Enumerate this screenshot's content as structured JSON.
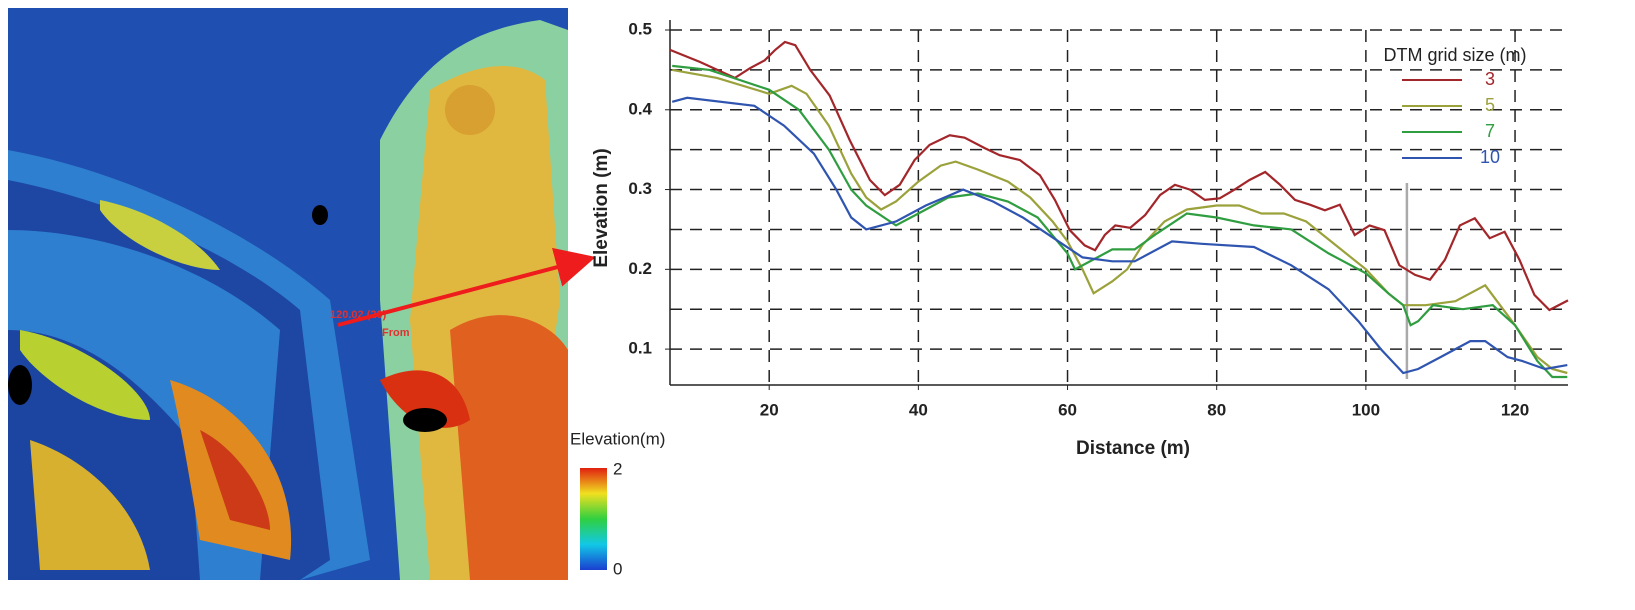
{
  "map": {
    "annotation_value": "120.02 (20)",
    "annotation_from": "From",
    "legend_title": "Elevation(m)",
    "legend_max": "2",
    "legend_min": "0"
  },
  "chart_data": {
    "type": "line",
    "xlabel": "Distance (m)",
    "ylabel": "Elevation (m)",
    "xlim": [
      6.7,
      127.1
    ],
    "ylim": [
      0.055,
      0.5
    ],
    "xticks": [
      20,
      40,
      60,
      80,
      100,
      120
    ],
    "yticks": [
      0.1,
      0.2,
      0.3,
      0.4,
      0.5
    ],
    "ygrid": [
      0.1,
      0.15,
      0.2,
      0.25,
      0.3,
      0.35,
      0.4,
      0.45,
      0.5
    ],
    "grid": true,
    "marker_x": 105.5,
    "legend_title": "DTM grid size (m)",
    "legend": "upper right",
    "series": [
      {
        "name": "3",
        "color": "#a3262a",
        "x": [
          6.7,
          10.7,
          15.4,
          17.4,
          19.4,
          20.8,
          22.1,
          23.5,
          25.5,
          28.1,
          30.8,
          33.5,
          35.5,
          37.5,
          39.5,
          41.5,
          44.2,
          46.2,
          48.9,
          50.9,
          53.6,
          56.3,
          58.3,
          60.3,
          62.3,
          63.7,
          65,
          66.4,
          68.4,
          70.4,
          72.4,
          74.4,
          76.4,
          78.4,
          80.4,
          82.4,
          84.4,
          86.5,
          88.5,
          90.5,
          92.5,
          94.5,
          96.5,
          98.5,
          100.5,
          102.5,
          104.5,
          106.6,
          108.6,
          110.6,
          112.6,
          114.6,
          116.6,
          118.6,
          120.6,
          122.6,
          124.6,
          127.1
        ],
        "values": [
          0.475,
          0.46,
          0.44,
          0.452,
          0.462,
          0.475,
          0.485,
          0.481,
          0.45,
          0.418,
          0.362,
          0.312,
          0.293,
          0.306,
          0.337,
          0.356,
          0.368,
          0.365,
          0.352,
          0.343,
          0.337,
          0.318,
          0.287,
          0.249,
          0.23,
          0.224,
          0.243,
          0.255,
          0.252,
          0.268,
          0.293,
          0.306,
          0.3,
          0.287,
          0.289,
          0.3,
          0.312,
          0.322,
          0.306,
          0.287,
          0.281,
          0.274,
          0.281,
          0.243,
          0.255,
          0.249,
          0.205,
          0.193,
          0.187,
          0.212,
          0.255,
          0.264,
          0.239,
          0.247,
          0.212,
          0.168,
          0.149,
          0.161
        ]
      },
      {
        "name": "5",
        "color": "#9ba13b",
        "x": [
          7,
          13,
          20,
          23,
          25,
          28,
          31,
          33,
          35,
          37,
          40,
          43,
          45,
          48,
          52,
          55,
          58,
          60,
          62,
          63.5,
          66,
          68,
          70,
          73,
          76,
          80,
          83,
          86,
          89,
          92,
          96,
          100,
          103,
          105,
          108,
          112,
          116,
          120,
          123,
          125,
          127
        ],
        "values": [
          0.45,
          0.44,
          0.42,
          0.43,
          0.42,
          0.38,
          0.32,
          0.29,
          0.275,
          0.285,
          0.31,
          0.33,
          0.335,
          0.325,
          0.31,
          0.29,
          0.26,
          0.235,
          0.2,
          0.17,
          0.185,
          0.2,
          0.23,
          0.26,
          0.275,
          0.28,
          0.28,
          0.27,
          0.27,
          0.26,
          0.23,
          0.2,
          0.17,
          0.155,
          0.155,
          0.16,
          0.18,
          0.13,
          0.09,
          0.075,
          0.07
        ]
      },
      {
        "name": "7",
        "color": "#2f9d40",
        "x": [
          7,
          12,
          20,
          24,
          28,
          31,
          33,
          37,
          40,
          44,
          48,
          52,
          56,
          60,
          61,
          64,
          66,
          69,
          72,
          76,
          80,
          85,
          90,
          95,
          100,
          103,
          105,
          106,
          107,
          109,
          113,
          117,
          120,
          123,
          125,
          127
        ],
        "values": [
          0.455,
          0.45,
          0.425,
          0.4,
          0.35,
          0.3,
          0.28,
          0.255,
          0.27,
          0.29,
          0.295,
          0.285,
          0.265,
          0.22,
          0.2,
          0.215,
          0.225,
          0.225,
          0.245,
          0.27,
          0.265,
          0.255,
          0.25,
          0.22,
          0.195,
          0.17,
          0.155,
          0.13,
          0.135,
          0.155,
          0.15,
          0.155,
          0.13,
          0.085,
          0.065,
          0.065
        ]
      },
      {
        "name": "10",
        "color": "#2f55b0",
        "x": [
          7,
          9,
          18,
          22,
          26,
          29,
          31,
          33,
          37,
          41,
          46,
          50,
          54,
          58,
          62,
          66,
          69,
          74,
          78,
          85,
          90,
          95,
          99,
          102,
          105,
          107,
          110,
          114,
          116,
          119,
          121,
          124,
          127
        ],
        "values": [
          0.41,
          0.415,
          0.405,
          0.38,
          0.345,
          0.3,
          0.265,
          0.25,
          0.26,
          0.28,
          0.3,
          0.285,
          0.265,
          0.24,
          0.215,
          0.21,
          0.21,
          0.235,
          0.232,
          0.228,
          0.205,
          0.175,
          0.135,
          0.1,
          0.07,
          0.075,
          0.09,
          0.11,
          0.11,
          0.09,
          0.085,
          0.075,
          0.08
        ]
      }
    ]
  }
}
